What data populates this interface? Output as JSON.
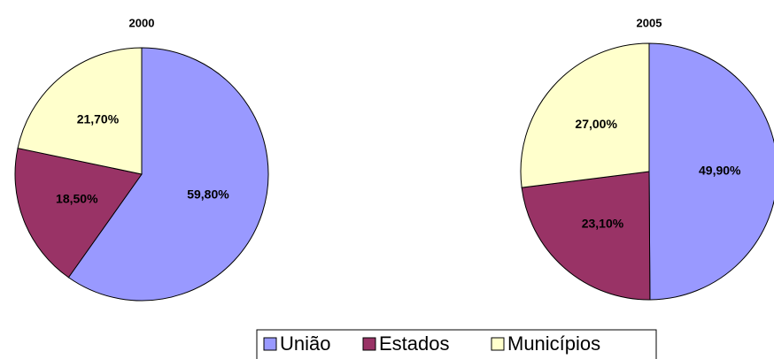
{
  "chart_data": [
    {
      "type": "pie",
      "title": "2000",
      "categories": [
        "União",
        "Estados",
        "Municípios"
      ],
      "values": [
        59.8,
        18.5,
        21.7
      ],
      "value_labels": [
        "59,80%",
        "18,50%",
        "21,70%"
      ],
      "colors": [
        "#9999ff",
        "#993366",
        "#ffffcc"
      ]
    },
    {
      "type": "pie",
      "title": "2005",
      "categories": [
        "União",
        "Estados",
        "Municípios"
      ],
      "values": [
        49.9,
        23.1,
        27.0
      ],
      "value_labels": [
        "49,90%",
        "23,10%",
        "27,00%"
      ],
      "colors": [
        "#9999ff",
        "#993366",
        "#ffffcc"
      ]
    }
  ]
}
